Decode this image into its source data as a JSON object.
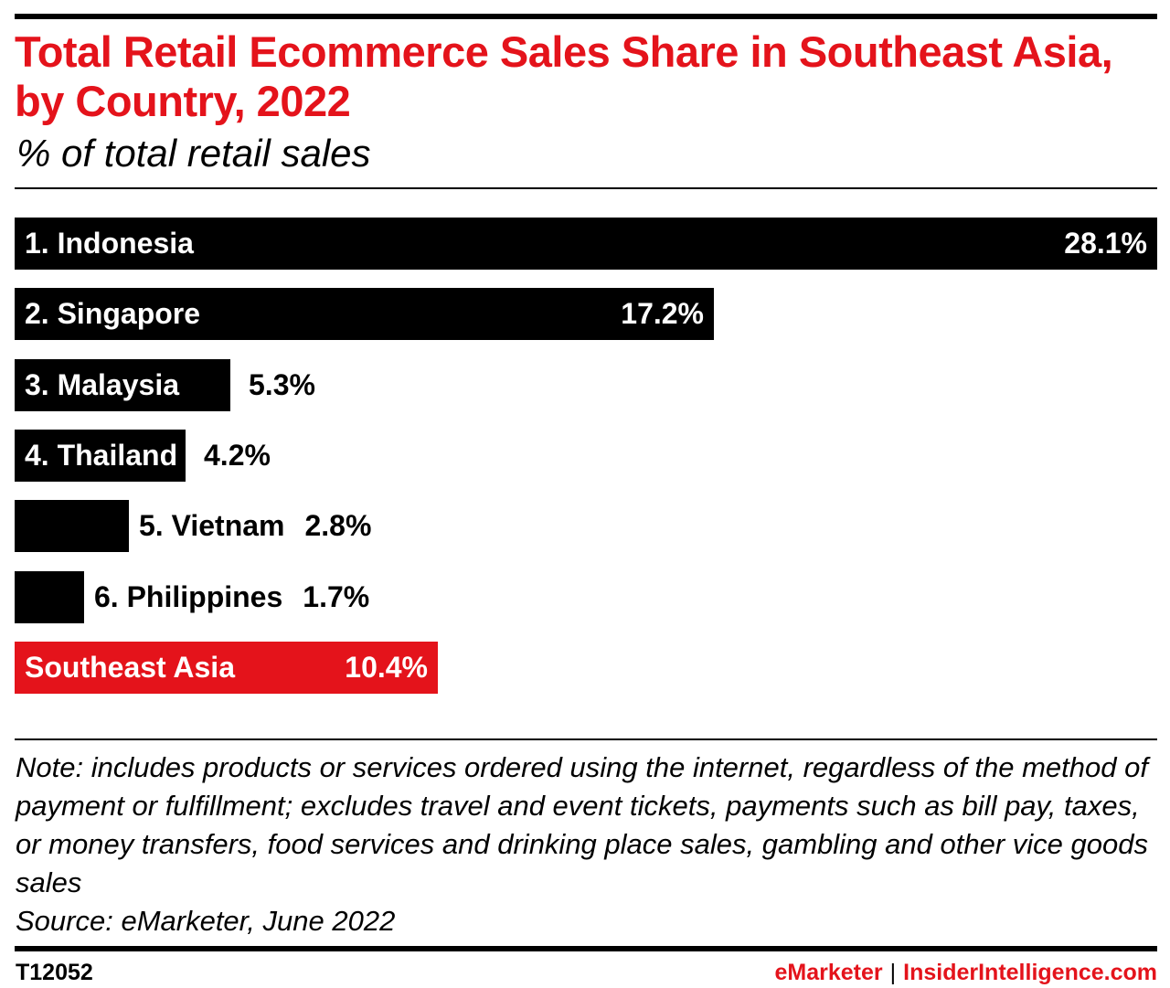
{
  "header": {
    "title": "Total Retail Ecommerce Sales Share in Southeast Asia, by Country, 2022",
    "subtitle": "% of total retail sales"
  },
  "colors": {
    "country_bar": "#000000",
    "region_bar": "#e4131b",
    "brand": "#e4131b"
  },
  "chart_data": {
    "type": "bar",
    "orientation": "horizontal",
    "title": "Total Retail Ecommerce Sales Share in Southeast Asia, by Country, 2022",
    "subtitle": "% of total retail sales",
    "categories": [
      "1. Indonesia",
      "2. Singapore",
      "3. Malaysia",
      "4. Thailand",
      "5. Vietnam",
      "6. Philippines",
      "Southeast Asia"
    ],
    "values": [
      28.1,
      17.2,
      5.3,
      4.2,
      2.8,
      1.7,
      10.4
    ],
    "value_labels": [
      "28.1%",
      "17.2%",
      "5.3%",
      "4.2%",
      "2.8%",
      "1.7%",
      "10.4%"
    ],
    "highlight": [
      "Southeast Asia"
    ],
    "xlim": [
      0,
      28.1
    ],
    "grid": false,
    "legend": "none"
  },
  "footer": {
    "note": "Note: includes products or services ordered using the internet, regardless of the method of payment or fulfillment; excludes travel and event tickets, payments such as bill pay, taxes, or money transfers, food services and drinking place sales, gambling and other vice goods sales",
    "source": "Source: eMarketer, June 2022",
    "chart_id": "T12052",
    "brand_left": "eMarketer",
    "brand_separator": "|",
    "brand_right": "InsiderIntelligence.com"
  }
}
